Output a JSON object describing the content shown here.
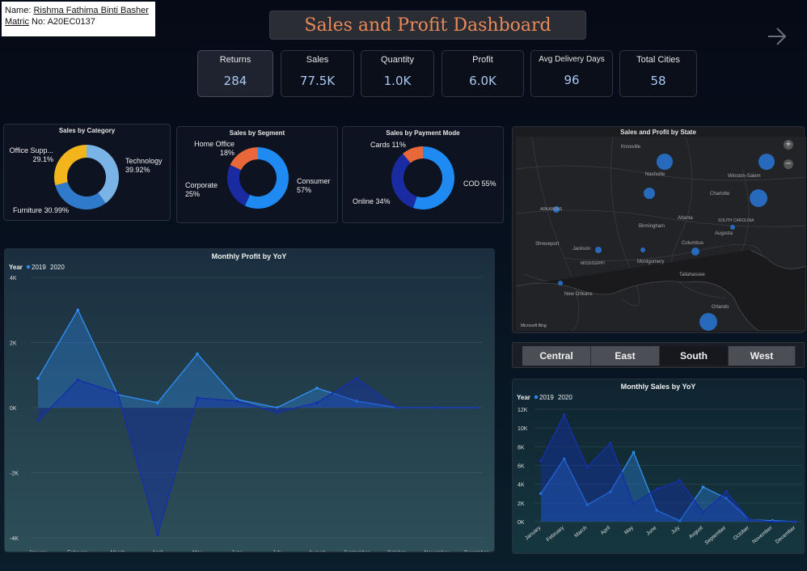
{
  "student": {
    "name_label": "Name:",
    "name": "Rishma Fathima Binti Basher",
    "matric_label": "Matric",
    "matric_value": "No: A20EC0137"
  },
  "dashboard_title": "Sales and Profit Dashboard",
  "icons": {
    "next": "arrow-right-icon",
    "zoom_in": "plus-icon",
    "zoom_out": "minus-icon"
  },
  "kpis": [
    {
      "label": "Returns",
      "value": "284"
    },
    {
      "label": "Sales",
      "value": "77.5K"
    },
    {
      "label": "Quantity",
      "value": "1.0K"
    },
    {
      "label": "Profit",
      "value": "6.0K"
    },
    {
      "label": "Avg Delivery Days",
      "value": "96"
    },
    {
      "label": "Total Cities",
      "value": "58"
    }
  ],
  "colors": {
    "series_2019": "#2f8cf0",
    "series_2020": "#1530a8",
    "donut_blue": "#1f8af2",
    "donut_navy": "#1a2aa0",
    "donut_orange": "#e8683a",
    "donut_yellow": "#f3b51c",
    "donut_light": "#7ab4e6",
    "donut_mid": "#2f7acb"
  },
  "chart_data": [
    {
      "id": "sales_by_category",
      "type": "pie",
      "title": "Sales by Category",
      "slices": [
        {
          "label": "Technology",
          "pct": "39.92%",
          "value": 39.92,
          "color": "#7ab4e6"
        },
        {
          "label": "Furniture",
          "pct": "30.99%",
          "value": 30.99,
          "color": "#2f7acb"
        },
        {
          "label": "Office Supp...",
          "pct": "29.1%",
          "value": 29.1,
          "color": "#f3b51c"
        }
      ]
    },
    {
      "id": "sales_by_segment",
      "type": "pie",
      "title": "Sales by Segment",
      "slices": [
        {
          "label": "Consumer",
          "pct": "57%",
          "value": 57,
          "color": "#1f8af2"
        },
        {
          "label": "Corporate",
          "pct": "25%",
          "value": 25,
          "color": "#1a2aa0"
        },
        {
          "label": "Home Office",
          "pct": "18%",
          "value": 18,
          "color": "#e8683a"
        }
      ]
    },
    {
      "id": "sales_by_payment",
      "type": "pie",
      "title": "Sales by Payment Mode",
      "slices": [
        {
          "label": "COD",
          "pct": "55%",
          "value": 55,
          "color": "#1f8af2"
        },
        {
          "label": "Online",
          "pct": "34%",
          "value": 34,
          "color": "#1a2aa0"
        },
        {
          "label": "Cards",
          "pct": "11%",
          "value": 11,
          "color": "#e8683a"
        }
      ]
    },
    {
      "id": "monthly_profit",
      "type": "area",
      "title": "Monthly Profit by YoY",
      "legend_title": "Year",
      "categories": [
        "January",
        "February",
        "March",
        "April",
        "May",
        "June",
        "July",
        "August",
        "September",
        "October",
        "November",
        "December"
      ],
      "series": [
        {
          "name": "2019",
          "values": [
            900,
            3000,
            400,
            150,
            1650,
            250,
            0,
            600,
            200,
            0,
            0,
            0
          ]
        },
        {
          "name": "2020",
          "values": [
            -400,
            850,
            450,
            -3900,
            300,
            200,
            -150,
            150,
            900,
            0,
            0,
            0
          ]
        }
      ],
      "ylim": [
        -4000,
        4000
      ],
      "yticks": [
        -4000,
        -2000,
        0,
        2000,
        4000
      ],
      "ytick_labels": [
        "-4K",
        "-2K",
        "0K",
        "2K",
        "4K"
      ]
    },
    {
      "id": "monthly_sales",
      "type": "area",
      "title": "Monthly Sales by YoY",
      "legend_title": "Year",
      "categories": [
        "January",
        "February",
        "March",
        "April",
        "May",
        "June",
        "July",
        "August",
        "September",
        "October",
        "November",
        "December"
      ],
      "series": [
        {
          "name": "2019",
          "values": [
            3000,
            6700,
            1800,
            3200,
            7400,
            1200,
            100,
            3700,
            2500,
            200,
            100,
            0
          ]
        },
        {
          "name": "2020",
          "values": [
            6500,
            11400,
            5800,
            8400,
            1900,
            3500,
            4400,
            1000,
            3200,
            200,
            0,
            0
          ]
        }
      ],
      "ylim": [
        0,
        12000
      ],
      "yticks": [
        0,
        2000,
        4000,
        6000,
        8000,
        10000,
        12000
      ],
      "ytick_labels": [
        "0K",
        "2K",
        "4K",
        "6K",
        "8K",
        "10K",
        "12K"
      ]
    }
  ],
  "map": {
    "title": "Sales and Profit by State",
    "places": [
      "Knoxville",
      "Winston-Salem",
      "Nashville",
      "Charlotte",
      "ARKANSAS",
      "Birmingham",
      "Atlanta",
      "SOUTH CAROLINA",
      "Augusta",
      "Shreveport",
      "Jackson",
      "Montgomery",
      "MISSISSIPPI",
      "Columbus",
      "Tallahassee",
      "New Orleans",
      "Orlando"
    ],
    "attribution": "Microsoft Bing"
  },
  "regions": [
    "Central",
    "East",
    "South",
    "West"
  ],
  "selected_region": "South"
}
